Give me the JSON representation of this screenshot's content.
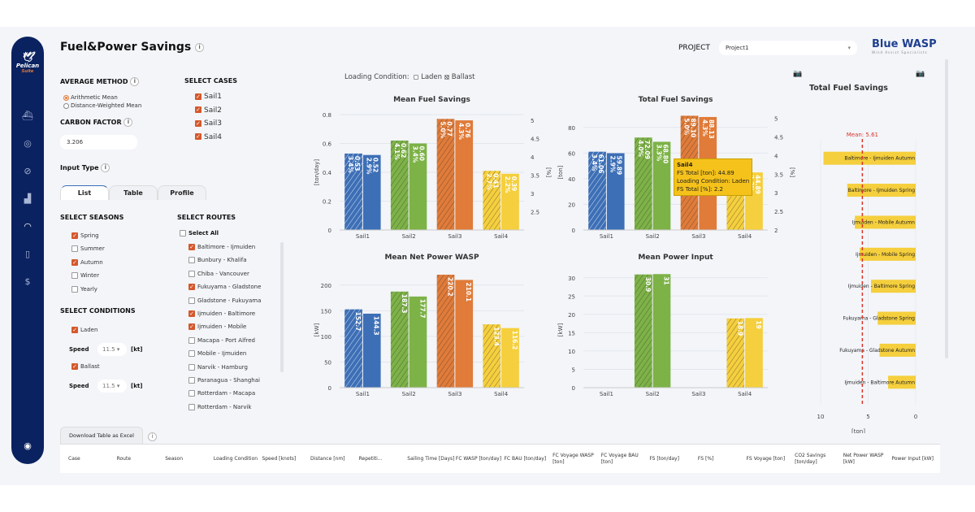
{
  "sidebar": {
    "logo_text": "Pelican",
    "logo_sub": "Suite",
    "items": [
      {
        "icon": "ship-icon"
      },
      {
        "icon": "target-icon"
      },
      {
        "icon": "compass-icon"
      },
      {
        "icon": "bar-chart-icon"
      },
      {
        "icon": "gauge-icon",
        "active": true
      },
      {
        "icon": "document-check-icon"
      },
      {
        "icon": "dollar-cycle-icon"
      }
    ],
    "bottom_icon": "collapse-icon"
  },
  "header": {
    "title": "Fuel&Power Savings",
    "project_label": "PROJECT",
    "project_value": "Project1",
    "brand": "Blue WASP",
    "brand_sub": "Wind Assist Specialists"
  },
  "controls": {
    "average_method": {
      "label": "AVERAGE METHOD",
      "options": [
        {
          "label": "Arithmetic Mean",
          "selected": true
        },
        {
          "label": "Distance-Weighted Mean",
          "selected": false
        }
      ]
    },
    "carbon_factor": {
      "label": "CARBON FACTOR",
      "value": "3.206"
    },
    "select_cases": {
      "label": "SELECT CASES",
      "items": [
        {
          "label": "Sail1",
          "checked": true
        },
        {
          "label": "Sail2",
          "checked": true
        },
        {
          "label": "Sail3",
          "checked": true
        },
        {
          "label": "Sail4",
          "checked": true
        }
      ]
    },
    "input_type": {
      "label": "Input Type",
      "tabs": [
        "List",
        "Table",
        "Profile"
      ],
      "active": "List"
    },
    "seasons": {
      "label": "SELECT SEASONS",
      "items": [
        {
          "label": "Spring",
          "checked": true
        },
        {
          "label": "Summer",
          "checked": false
        },
        {
          "label": "Autumn",
          "checked": true
        },
        {
          "label": "Winter",
          "checked": false
        },
        {
          "label": "Yearly",
          "checked": false
        }
      ]
    },
    "conditions": {
      "label": "SELECT CONDITIONS",
      "laden": "Laden",
      "ballast": "Ballast",
      "speed_label": "Speed",
      "laden_speed": "11.5",
      "ballast_speed": "11.5",
      "unit": "[kt]"
    },
    "routes": {
      "label": "SELECT ROUTES",
      "select_all": "Select All",
      "items": [
        {
          "label": "Baltimore - Ijmuiden",
          "checked": true
        },
        {
          "label": "Bunbury - Khalifa",
          "checked": false
        },
        {
          "label": "Chiba - Vancouver",
          "checked": false
        },
        {
          "label": "Fukuyama - Gladstone",
          "checked": true
        },
        {
          "label": "Gladstone - Fukuyama",
          "checked": false
        },
        {
          "label": "Ijmuiden - Baltimore",
          "checked": true
        },
        {
          "label": "Ijmuiden - Mobile",
          "checked": true
        },
        {
          "label": "Macapa - Port Alfred",
          "checked": false
        },
        {
          "label": "Mobile - Ijmuiden",
          "checked": false
        },
        {
          "label": "Narvik - Hamburg",
          "checked": false
        },
        {
          "label": "Paranagua - Shanghai",
          "checked": false
        },
        {
          "label": "Rotterdam - Macapa",
          "checked": false
        },
        {
          "label": "Rotterdam - Narvik",
          "checked": false
        }
      ]
    }
  },
  "legend": {
    "label": "Loading Condition:",
    "items": [
      "Laden",
      "Ballast"
    ]
  },
  "colors": {
    "Sail1": "#3d6fb6",
    "Sail2": "#7db247",
    "Sail3": "#e07b39",
    "Sail4": "#f5cf3d",
    "mean_line": "#d9352b"
  },
  "chart_data": [
    {
      "type": "bar",
      "title": "Mean Fuel Savings",
      "ylabel": "[ton/day]",
      "y2label": "[%]",
      "categories": [
        "Sail1",
        "Sail2",
        "Sail3",
        "Sail4"
      ],
      "ylim": [
        0,
        0.8
      ],
      "yticks": [
        0,
        0.2,
        0.4,
        0.6,
        0.8
      ],
      "y2lim": [
        2,
        5.16
      ],
      "y2ticks": [
        2.5,
        3,
        3.5,
        4,
        4.5,
        5
      ],
      "series": [
        {
          "name": "Ballast",
          "pattern": "hatched",
          "values": [
            0.53,
            0.62,
            0.77,
            0.41
          ],
          "labels": [
            "0.53",
            "0.62",
            "0.77",
            "0.41"
          ],
          "pct": [
            "3.4%",
            "4.1%",
            "5.0%",
            "2.7%"
          ]
        },
        {
          "name": "Laden",
          "pattern": "solid",
          "values": [
            0.52,
            0.6,
            0.76,
            0.39
          ],
          "labels": [
            "0.52",
            "0.60",
            "0.76",
            "0.39"
          ],
          "pct": [
            "2.9%",
            "3.4%",
            "4.3%",
            "2.2%"
          ]
        }
      ]
    },
    {
      "type": "bar",
      "title": "Total Fuel Savings",
      "ylabel": "[ton]",
      "y2label": "[%]",
      "categories": [
        "Sail1",
        "Sail2",
        "Sail3",
        "Sail4"
      ],
      "ylim": [
        0,
        90
      ],
      "yticks": [
        0,
        20,
        40,
        60,
        80
      ],
      "y2lim": [
        2,
        5.1
      ],
      "y2ticks": [
        2,
        2.5,
        3,
        3.5,
        4,
        4.5,
        5
      ],
      "series": [
        {
          "name": "Ballast",
          "pattern": "hatched",
          "values": [
            61.06,
            72.09,
            89.1,
            47.2
          ],
          "labels": [
            "61.06",
            "72.09",
            "89.10",
            ""
          ],
          "pct": [
            "3.4%",
            "4.0%",
            "5.0%",
            ""
          ]
        },
        {
          "name": "Laden",
          "pattern": "solid",
          "values": [
            59.89,
            68.8,
            88.13,
            44.89
          ],
          "labels": [
            "59.89",
            "68.80",
            "88.13",
            "44.89"
          ],
          "pct": [
            "2.9%",
            "3.3%",
            "4.3%",
            "2.2%"
          ]
        }
      ],
      "tooltip": {
        "title": "Sail4",
        "lines": [
          "FS Total [ton]: 44.89",
          "Loading Condition: Laden",
          "FS Total [%]: 2.2"
        ]
      }
    },
    {
      "type": "bar",
      "title": "Mean Net Power WASP",
      "ylabel": "[kW]",
      "categories": [
        "Sail1",
        "Sail2",
        "Sail3",
        "Sail4"
      ],
      "ylim": [
        0,
        225
      ],
      "yticks": [
        0,
        50,
        100,
        150,
        200
      ],
      "series": [
        {
          "name": "Ballast",
          "pattern": "hatched",
          "values": [
            152.7,
            187.3,
            220.2,
            123.4
          ],
          "labels": [
            "152.7",
            "187.3",
            "220.2",
            "123.4"
          ]
        },
        {
          "name": "Laden",
          "pattern": "solid",
          "values": [
            144.3,
            177.7,
            210.1,
            116.2
          ],
          "labels": [
            "144.3",
            "177.7",
            "210.1",
            "116.2"
          ]
        }
      ]
    },
    {
      "type": "bar",
      "title": "Mean Power Input",
      "ylabel": "[kW]",
      "categories": [
        "Sail1",
        "Sail2",
        "Sail3",
        "Sail4"
      ],
      "ylim": [
        0,
        31.5
      ],
      "yticks": [
        0,
        5,
        10,
        15,
        20,
        25,
        30
      ],
      "series": [
        {
          "name": "Ballast",
          "pattern": "hatched",
          "values": [
            0,
            30.9,
            0,
            18.9
          ],
          "labels": [
            "",
            "30.9",
            "",
            "18.9"
          ]
        },
        {
          "name": "Laden",
          "pattern": "solid",
          "values": [
            0,
            31,
            0,
            19
          ],
          "labels": [
            "",
            "31",
            "",
            "19"
          ]
        }
      ]
    },
    {
      "type": "bar",
      "orientation": "horizontal",
      "title": "Total Fuel Savings",
      "xlabel": "[ton]",
      "xlim": [
        10,
        0
      ],
      "xticks": [
        10,
        5,
        0
      ],
      "mean": 5.61,
      "mean_label": "Mean: 5.61",
      "categories": [
        "Baltimore - Ijmuiden Autumn",
        "Baltimore - Ijmuiden Spring",
        "Ijmuiden - Mobile Autumn",
        "Ijmuiden - Mobile Spring",
        "Ijmuiden - Baltimore Spring",
        "Fukuyama - Gladstone Spring",
        "Fukuyama - Gladstone Autumn",
        "Ijmuiden - Baltimore Autumn"
      ],
      "values": [
        9.7,
        7.2,
        6.4,
        5.9,
        4.7,
        4.0,
        3.8,
        2.9
      ]
    }
  ],
  "table": {
    "download_label": "Download Table as Excel",
    "columns": [
      "Case",
      "Route",
      "Season",
      "Loading Condition",
      "Speed [knots]",
      "Distance [nm]",
      "Repetiti...",
      "Sailing Time [Days]",
      "FC WASP [ton/day]",
      "FC BAU [ton/day]",
      "FC Voyage WASP [ton]",
      "FC Voyage BAU [ton]",
      "FS [ton/day]",
      "FS [%]",
      "FS Voyage [ton]",
      "CO2 Savings [ton/day]",
      "Net Power WASP [kW]",
      "Power Input [kW]"
    ]
  }
}
